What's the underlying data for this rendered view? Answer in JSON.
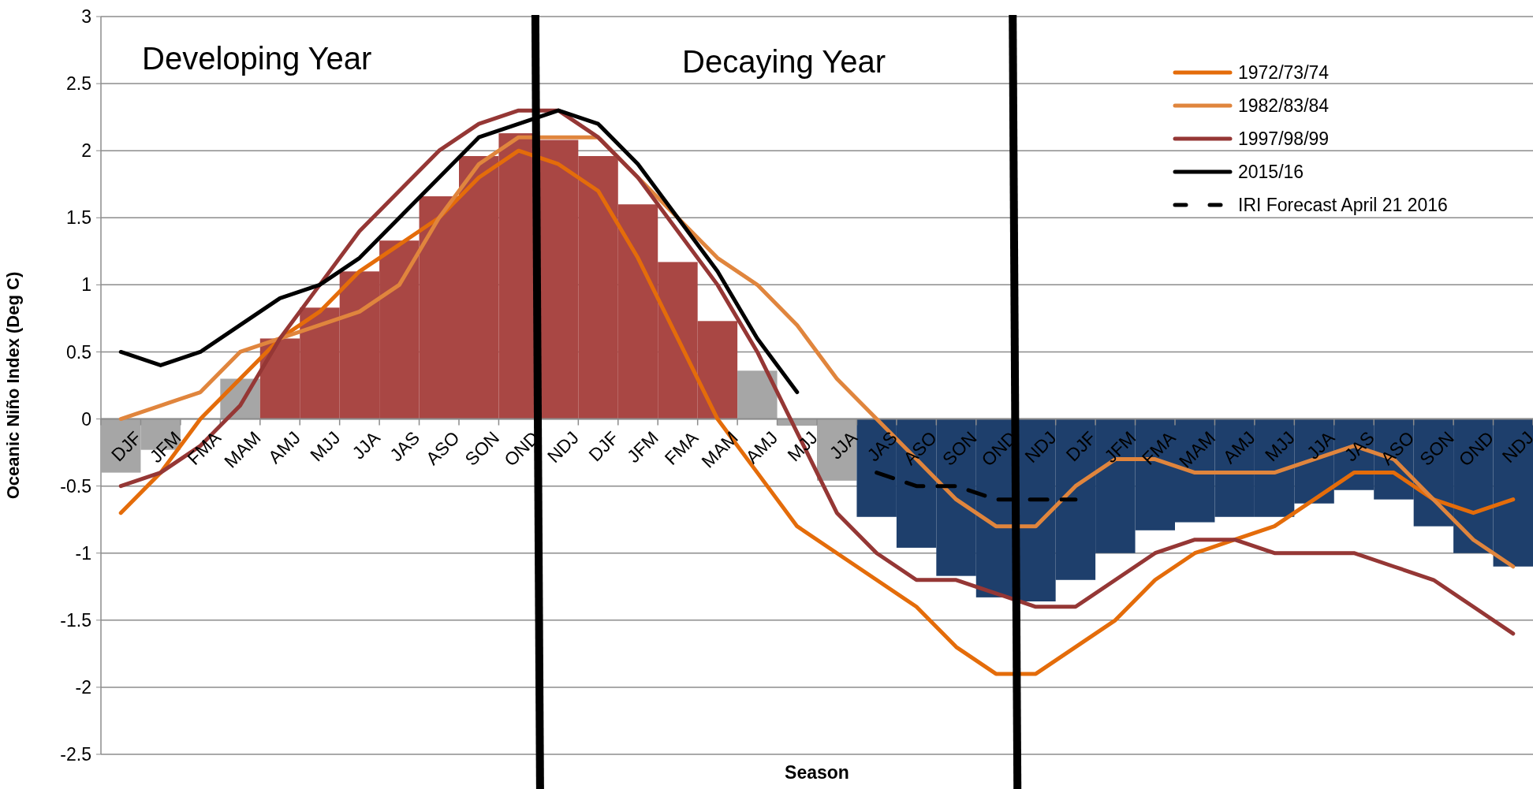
{
  "chart_data": {
    "type": "bar",
    "xlabel": "Season",
    "ylabel": "Oceanic Niño Index (Deg C)",
    "annotations": [
      "Developing Year",
      "Decaying Year"
    ],
    "categories": [
      "DJF",
      "JFM",
      "FMA",
      "MAM",
      "AMJ",
      "MJJ",
      "JJA",
      "JAS",
      "ASO",
      "SON",
      "OND",
      "NDJ",
      "DJF",
      "JFM",
      "FMA",
      "MAM",
      "AMJ",
      "MJJ",
      "JJA",
      "JAS",
      "ASO",
      "SON",
      "OND",
      "NDJ",
      "DJF",
      "JFM",
      "FMA",
      "MAM",
      "AMJ",
      "MJJ",
      "JJA",
      "JAS",
      "ASO",
      "SON",
      "OND",
      "NDJ"
    ],
    "series": [
      {
        "values": [
          -0.4,
          -0.23,
          0,
          0.3,
          0.6,
          0.83,
          1.1,
          1.33,
          1.66,
          1.96,
          2.13,
          2.08,
          1.96,
          1.6,
          1.17,
          0.73,
          0.36,
          -0.05,
          -0.46,
          -0.73,
          -0.96,
          -1.17,
          -1.33,
          -1.36,
          -1.2,
          -1.0,
          -0.83,
          -0.77,
          -0.73,
          -0.73,
          -0.63,
          -0.53,
          -0.6,
          -0.8,
          -1.0,
          -1.1
        ],
        "colors": [
          "#a6a6a6",
          "#a6a6a6",
          "#a6a6a6",
          "#a6a6a6",
          "#a94744",
          "#a94744",
          "#a94744",
          "#a94744",
          "#a94744",
          "#a94744",
          "#a94744",
          "#a94744",
          "#a94744",
          "#a94744",
          "#a94744",
          "#a94744",
          "#a6a6a6",
          "#a6a6a6",
          "#a6a6a6",
          "#1e3f6c",
          "#1e3f6c",
          "#1e3f6c",
          "#1e3f6c",
          "#1e3f6c",
          "#1e3f6c",
          "#1e3f6c",
          "#1e3f6c",
          "#1e3f6c",
          "#1e3f6c",
          "#1e3f6c",
          "#1e3f6c",
          "#1e3f6c",
          "#1e3f6c",
          "#1e3f6c",
          "#1e3f6c",
          "#1e3f6c"
        ]
      },
      {
        "type": "line",
        "name": "1972/73/74",
        "color": "#e46c0a",
        "values": [
          -0.7,
          -0.4,
          0,
          0.3,
          0.6,
          0.8,
          1.1,
          1.3,
          1.5,
          1.8,
          2.0,
          1.9,
          1.7,
          1.2,
          0.6,
          0,
          -0.4,
          -0.8,
          -1.0,
          -1.2,
          -1.4,
          -1.7,
          -1.9,
          -1.9,
          -1.7,
          -1.5,
          -1.2,
          -1.0,
          -0.9,
          -0.8,
          -0.6,
          -0.4,
          -0.4,
          -0.6,
          -0.7,
          -0.6
        ]
      },
      {
        "type": "line",
        "name": "1982/83/84",
        "color": "#e0853d",
        "values": [
          0,
          0.1,
          0.2,
          0.5,
          0.6,
          0.7,
          0.8,
          1.0,
          1.5,
          1.9,
          2.1,
          2.1,
          2.1,
          1.8,
          1.5,
          1.2,
          1.0,
          0.7,
          0.3,
          0,
          -0.3,
          -0.6,
          -0.8,
          -0.8,
          -0.5,
          -0.3,
          -0.3,
          -0.4,
          -0.4,
          -0.4,
          -0.3,
          -0.2,
          -0.3,
          -0.6,
          -0.9,
          -1.1
        ]
      },
      {
        "type": "line",
        "name": "1997/98/99",
        "color": "#953735",
        "values": [
          -0.5,
          -0.4,
          -0.2,
          0.1,
          0.6,
          1.0,
          1.4,
          1.7,
          2.0,
          2.2,
          2.3,
          2.3,
          2.1,
          1.8,
          1.4,
          1.0,
          0.5,
          -0.1,
          -0.7,
          -1.0,
          -1.2,
          -1.2,
          -1.3,
          -1.4,
          -1.4,
          -1.2,
          -1.0,
          -0.9,
          -0.9,
          -1.0,
          -1.0,
          -1.0,
          -1.1,
          -1.2,
          -1.4,
          -1.6
        ]
      },
      {
        "type": "line",
        "name": "2015/16",
        "color": "#000000",
        "values": [
          0.5,
          0.4,
          0.5,
          0.7,
          0.9,
          1.0,
          1.2,
          1.5,
          1.8,
          2.1,
          2.2,
          2.3,
          2.2,
          1.9,
          1.5,
          1.1,
          0.6,
          0.2,
          null,
          null,
          null,
          null,
          null,
          null,
          null,
          null,
          null,
          null,
          null,
          null,
          null,
          null,
          null,
          null,
          null,
          null
        ]
      },
      {
        "type": "line",
        "name": "IRI Forecast April 21 2016",
        "color": "#000000",
        "line_style": "dashed",
        "values": [
          null,
          null,
          null,
          null,
          null,
          null,
          null,
          null,
          null,
          null,
          null,
          null,
          null,
          null,
          null,
          null,
          null,
          null,
          null,
          -0.4,
          -0.5,
          -0.5,
          -0.6,
          -0.6,
          -0.6,
          null,
          null,
          null,
          null,
          null,
          null,
          null,
          null,
          null,
          null,
          null
        ]
      }
    ],
    "ylim": [
      -2.5,
      3
    ],
    "yticks": [
      -2.5,
      -2,
      -1.5,
      -1,
      -0.5,
      0,
      0.5,
      1,
      1.5,
      2,
      2.5,
      3
    ],
    "grid": "y",
    "legend": "top right"
  }
}
